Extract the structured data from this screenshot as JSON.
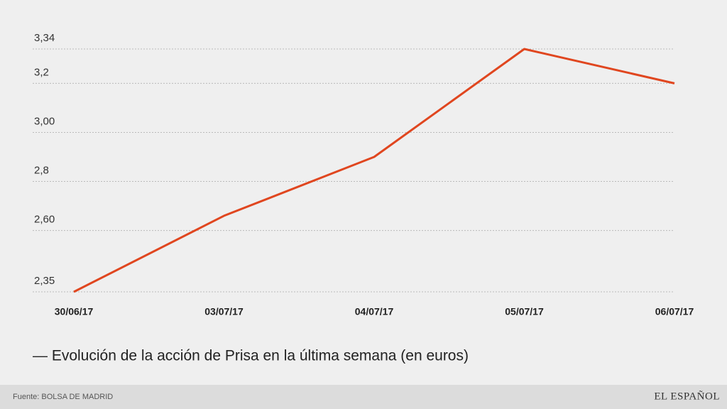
{
  "chart_data": {
    "type": "line",
    "title": "— Evolución de la acción de Prisa en la última semana (en euros)",
    "source": "Fuente: BOLSA DE MADRID",
    "brand": "EL ESPAÑOL",
    "categories": [
      "30/06/17",
      "03/07/17",
      "04/07/17",
      "05/07/17",
      "06/07/17"
    ],
    "values": [
      2.35,
      2.66,
      2.9,
      3.34,
      3.2
    ],
    "color": "#e0461f",
    "ylim": [
      2.35,
      3.34
    ],
    "yticks": [
      {
        "value": 2.35,
        "label": "2,35"
      },
      {
        "value": 2.6,
        "label": "2,60"
      },
      {
        "value": 2.8,
        "label": "2,8"
      },
      {
        "value": 3.0,
        "label": "3,00"
      },
      {
        "value": 3.2,
        "label": "3,2"
      },
      {
        "value": 3.34,
        "label": "3,34"
      }
    ],
    "grid": true
  }
}
